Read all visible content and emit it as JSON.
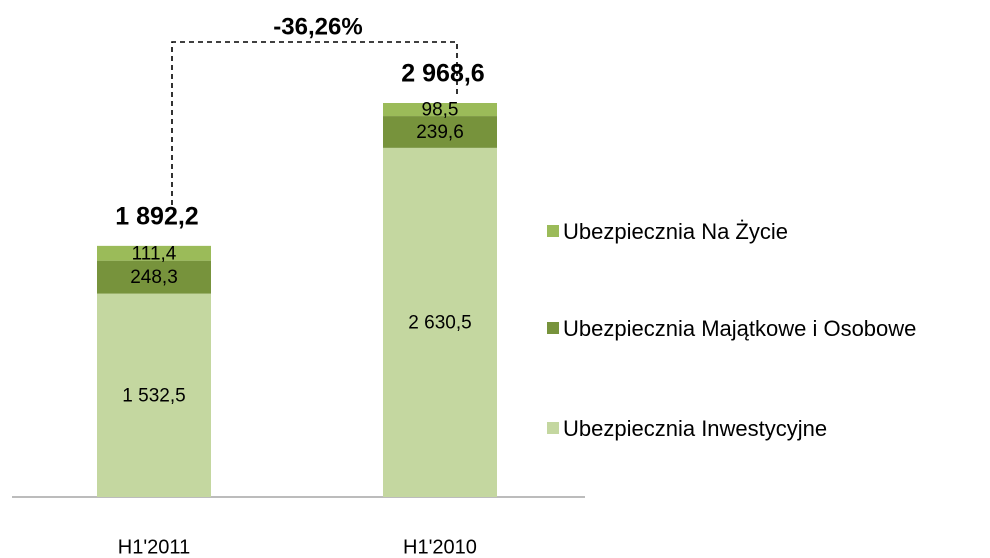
{
  "chart_data": {
    "type": "stacked_bar",
    "categories": [
      "H1'2011",
      "H1'2010"
    ],
    "series": [
      {
        "name": "Ubezpiecznia Inwestycyjne",
        "color": "#c4d7a0",
        "values": [
          1532.5,
          2630.5
        ],
        "value_labels": [
          "1 532,5",
          "2 630,5"
        ]
      },
      {
        "name": "Ubezpiecznia Majątkowe i Osobowe",
        "color": "#77933c",
        "values": [
          248.3,
          239.6
        ],
        "value_labels": [
          "248,3",
          "239,6"
        ]
      },
      {
        "name": "Ubezpiecznia Na Życie",
        "color": "#9bbb59",
        "values": [
          111.4,
          98.5
        ],
        "value_labels": [
          "111,4",
          "98,5"
        ]
      }
    ],
    "totals": [
      1892.2,
      2968.6
    ],
    "total_labels": [
      "1 892,2",
      "2 968,6"
    ],
    "annotation": "-36,26%"
  }
}
